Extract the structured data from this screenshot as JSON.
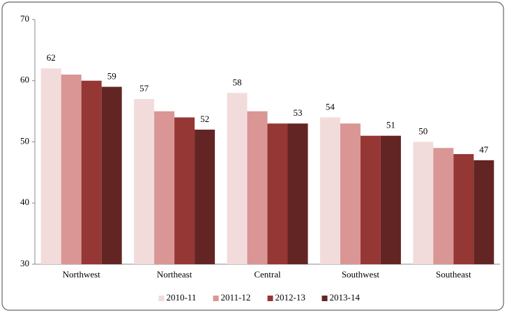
{
  "chart_data": {
    "type": "bar",
    "categories": [
      "Northwest",
      "Northeast",
      "Central",
      "Southwest",
      "Southeast"
    ],
    "series": [
      {
        "name": "2010-11",
        "color": "#f2dcdb",
        "values": [
          62,
          57,
          58,
          54,
          50
        ],
        "show_labels": true
      },
      {
        "name": "2011-12",
        "color": "#d99694",
        "values": [
          61,
          55,
          55,
          53,
          49
        ],
        "show_labels": false
      },
      {
        "name": "2012-13",
        "color": "#953735",
        "values": [
          60,
          54,
          53,
          51,
          48
        ],
        "show_labels": false
      },
      {
        "name": "2013-14",
        "color": "#632523",
        "values": [
          59,
          52,
          53,
          51,
          47
        ],
        "show_labels": true
      }
    ],
    "ylim": [
      30,
      70
    ],
    "yticks": [
      30,
      40,
      50,
      60,
      70
    ],
    "grid": false,
    "legend": "bottom"
  }
}
